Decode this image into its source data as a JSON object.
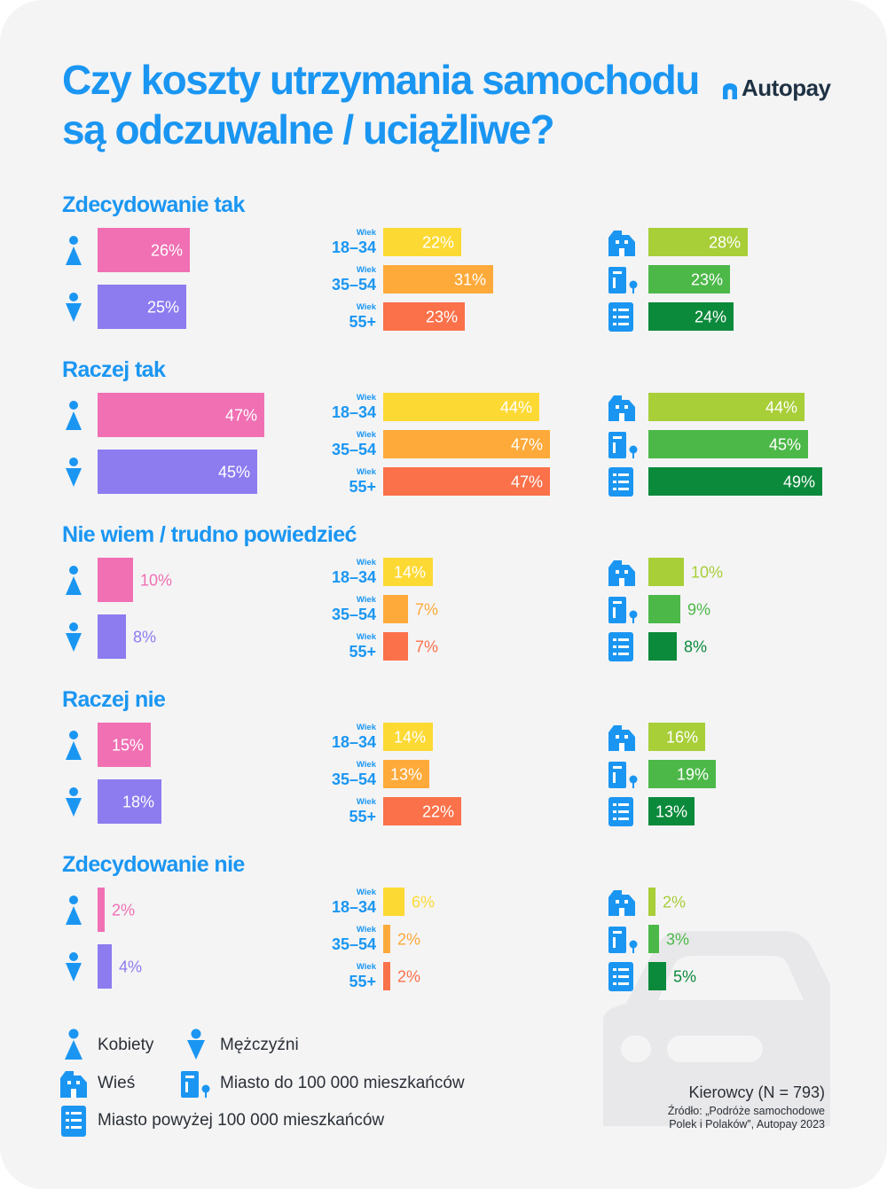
{
  "title": {
    "line1": "Czy koszty utrzymania samochodu",
    "line2": "są odczuwalne / uciążliwe?"
  },
  "brand": {
    "name": "Autopay"
  },
  "colors": {
    "title": "#1a96f2",
    "icon": "#1a96f2",
    "women": "#f070b3",
    "men": "#8c7cf0",
    "age_18_34": "#fdd934",
    "age_35_54": "#fdaa3a",
    "age_55_plus": "#fb714a",
    "village": "#a8ce38",
    "city_small": "#4cb848",
    "city_large": "#0b8a3b"
  },
  "chart_data": {
    "type": "bar",
    "unit": "%",
    "groups": [
      {
        "gender": "Kobiety",
        "age": "18–34",
        "age_label": "Wiek",
        "residence": "Wieś"
      },
      {
        "gender": "Mężczyźni",
        "age": "35–54",
        "age_label": "Wiek",
        "residence": "Miasto do 100 000 mieszkańców"
      },
      {
        "age": "55+",
        "age_label": "Wiek",
        "residence": "Miasto powyżej 100 000 mieszkańców"
      }
    ],
    "sections": [
      {
        "name": "Zdecydowanie tak",
        "gender": [
          {
            "value": 26,
            "label": "26%"
          },
          {
            "value": 25,
            "label": "25%"
          }
        ],
        "age": [
          {
            "value": 22,
            "label": "22%"
          },
          {
            "value": 31,
            "label": "31%"
          },
          {
            "value": 23,
            "label": "23%"
          }
        ],
        "residence": [
          {
            "value": 28,
            "label": "28%"
          },
          {
            "value": 23,
            "label": "23%"
          },
          {
            "value": 24,
            "label": "24%"
          }
        ]
      },
      {
        "name": "Raczej tak",
        "gender": [
          {
            "value": 47,
            "label": "47%"
          },
          {
            "value": 45,
            "label": "45%"
          }
        ],
        "age": [
          {
            "value": 44,
            "label": "44%"
          },
          {
            "value": 47,
            "label": "47%"
          },
          {
            "value": 47,
            "label": "47%"
          }
        ],
        "residence": [
          {
            "value": 44,
            "label": "44%"
          },
          {
            "value": 45,
            "label": "45%"
          },
          {
            "value": 49,
            "label": "49%"
          }
        ]
      },
      {
        "name": "Nie wiem / trudno powiedzieć",
        "gender": [
          {
            "value": 10,
            "label": "10%"
          },
          {
            "value": 8,
            "label": "8%"
          }
        ],
        "age": [
          {
            "value": 14,
            "label": "14%"
          },
          {
            "value": 7,
            "label": "7%"
          },
          {
            "value": 7,
            "label": "7%"
          }
        ],
        "residence": [
          {
            "value": 10,
            "label": "10%"
          },
          {
            "value": 9,
            "label": "9%"
          },
          {
            "value": 8,
            "label": "8%"
          }
        ]
      },
      {
        "name": "Raczej nie",
        "gender": [
          {
            "value": 15,
            "label": "15%"
          },
          {
            "value": 18,
            "label": "18%"
          }
        ],
        "age": [
          {
            "value": 14,
            "label": "14%"
          },
          {
            "value": 13,
            "label": "13%"
          },
          {
            "value": 22,
            "label": "22%"
          }
        ],
        "residence": [
          {
            "value": 16,
            "label": "16%"
          },
          {
            "value": 19,
            "label": "19%"
          },
          {
            "value": 13,
            "label": "13%"
          }
        ]
      },
      {
        "name": "Zdecydowanie nie",
        "gender": [
          {
            "value": 2,
            "label": "2%"
          },
          {
            "value": 4,
            "label": "4%"
          }
        ],
        "age": [
          {
            "value": 6,
            "label": "6%"
          },
          {
            "value": 2,
            "label": "2%"
          },
          {
            "value": 2,
            "label": "2%"
          }
        ],
        "residence": [
          {
            "value": 2,
            "label": "2%"
          },
          {
            "value": 3,
            "label": "3%"
          },
          {
            "value": 5,
            "label": "5%"
          }
        ]
      }
    ]
  },
  "legend": {
    "women": "Kobiety",
    "men": "Mężczyźni",
    "village": "Wieś",
    "city_small": "Miasto do 100 000 mieszkańców",
    "city_large": "Miasto powyżej 100 000 mieszkańców"
  },
  "footer": {
    "sample": "Kierowcy (N = 793)",
    "source_line1": "Źródło: „Podróże samochodowe",
    "source_line2": "Polek i Polaków”, Autopay 2023"
  }
}
